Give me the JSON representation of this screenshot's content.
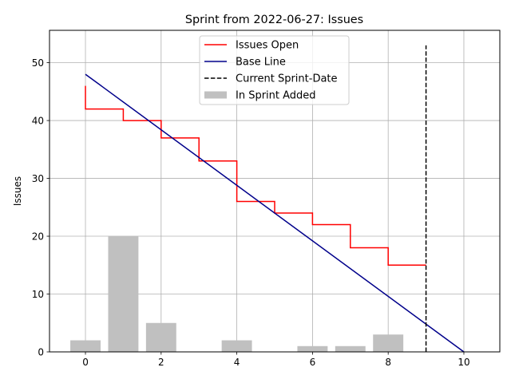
{
  "chart_data": {
    "type": "line",
    "title": "Sprint from 2022-06-27: Issues",
    "xlabel": "",
    "ylabel": "Issues",
    "xlim": [
      -0.95,
      10.95
    ],
    "ylim": [
      0,
      55.6
    ],
    "x_ticks": [
      0,
      2,
      4,
      6,
      8,
      10
    ],
    "y_ticks": [
      0,
      10,
      20,
      30,
      40,
      50
    ],
    "grid": true,
    "legend_position": "top-center",
    "series": [
      {
        "name": "Issues Open",
        "kind": "step",
        "color": "#ff0000",
        "points": [
          [
            0,
            46
          ],
          [
            0,
            42
          ],
          [
            1,
            42
          ],
          [
            1,
            40
          ],
          [
            2,
            40
          ],
          [
            2,
            37
          ],
          [
            3,
            37
          ],
          [
            3,
            33
          ],
          [
            4,
            33
          ],
          [
            4,
            26
          ],
          [
            5,
            26
          ],
          [
            5,
            24
          ],
          [
            6,
            24
          ],
          [
            6,
            22
          ],
          [
            7,
            22
          ],
          [
            7,
            18
          ],
          [
            8,
            18
          ],
          [
            8,
            15
          ],
          [
            9,
            15
          ]
        ]
      },
      {
        "name": "Base Line",
        "kind": "line",
        "color": "#00008b",
        "points": [
          [
            0,
            48
          ],
          [
            10,
            0
          ]
        ]
      },
      {
        "name": "Current Sprint-Date",
        "kind": "vline",
        "color": "#000000",
        "x": 9,
        "y_range": [
          0,
          53
        ]
      },
      {
        "name": "In Sprint Added",
        "kind": "bar",
        "color": "#c0c0c0",
        "x": [
          0,
          1,
          2,
          3,
          4,
          5,
          6,
          7,
          8
        ],
        "values": [
          2,
          20,
          5,
          0,
          2,
          0,
          1,
          1,
          3
        ]
      }
    ]
  }
}
